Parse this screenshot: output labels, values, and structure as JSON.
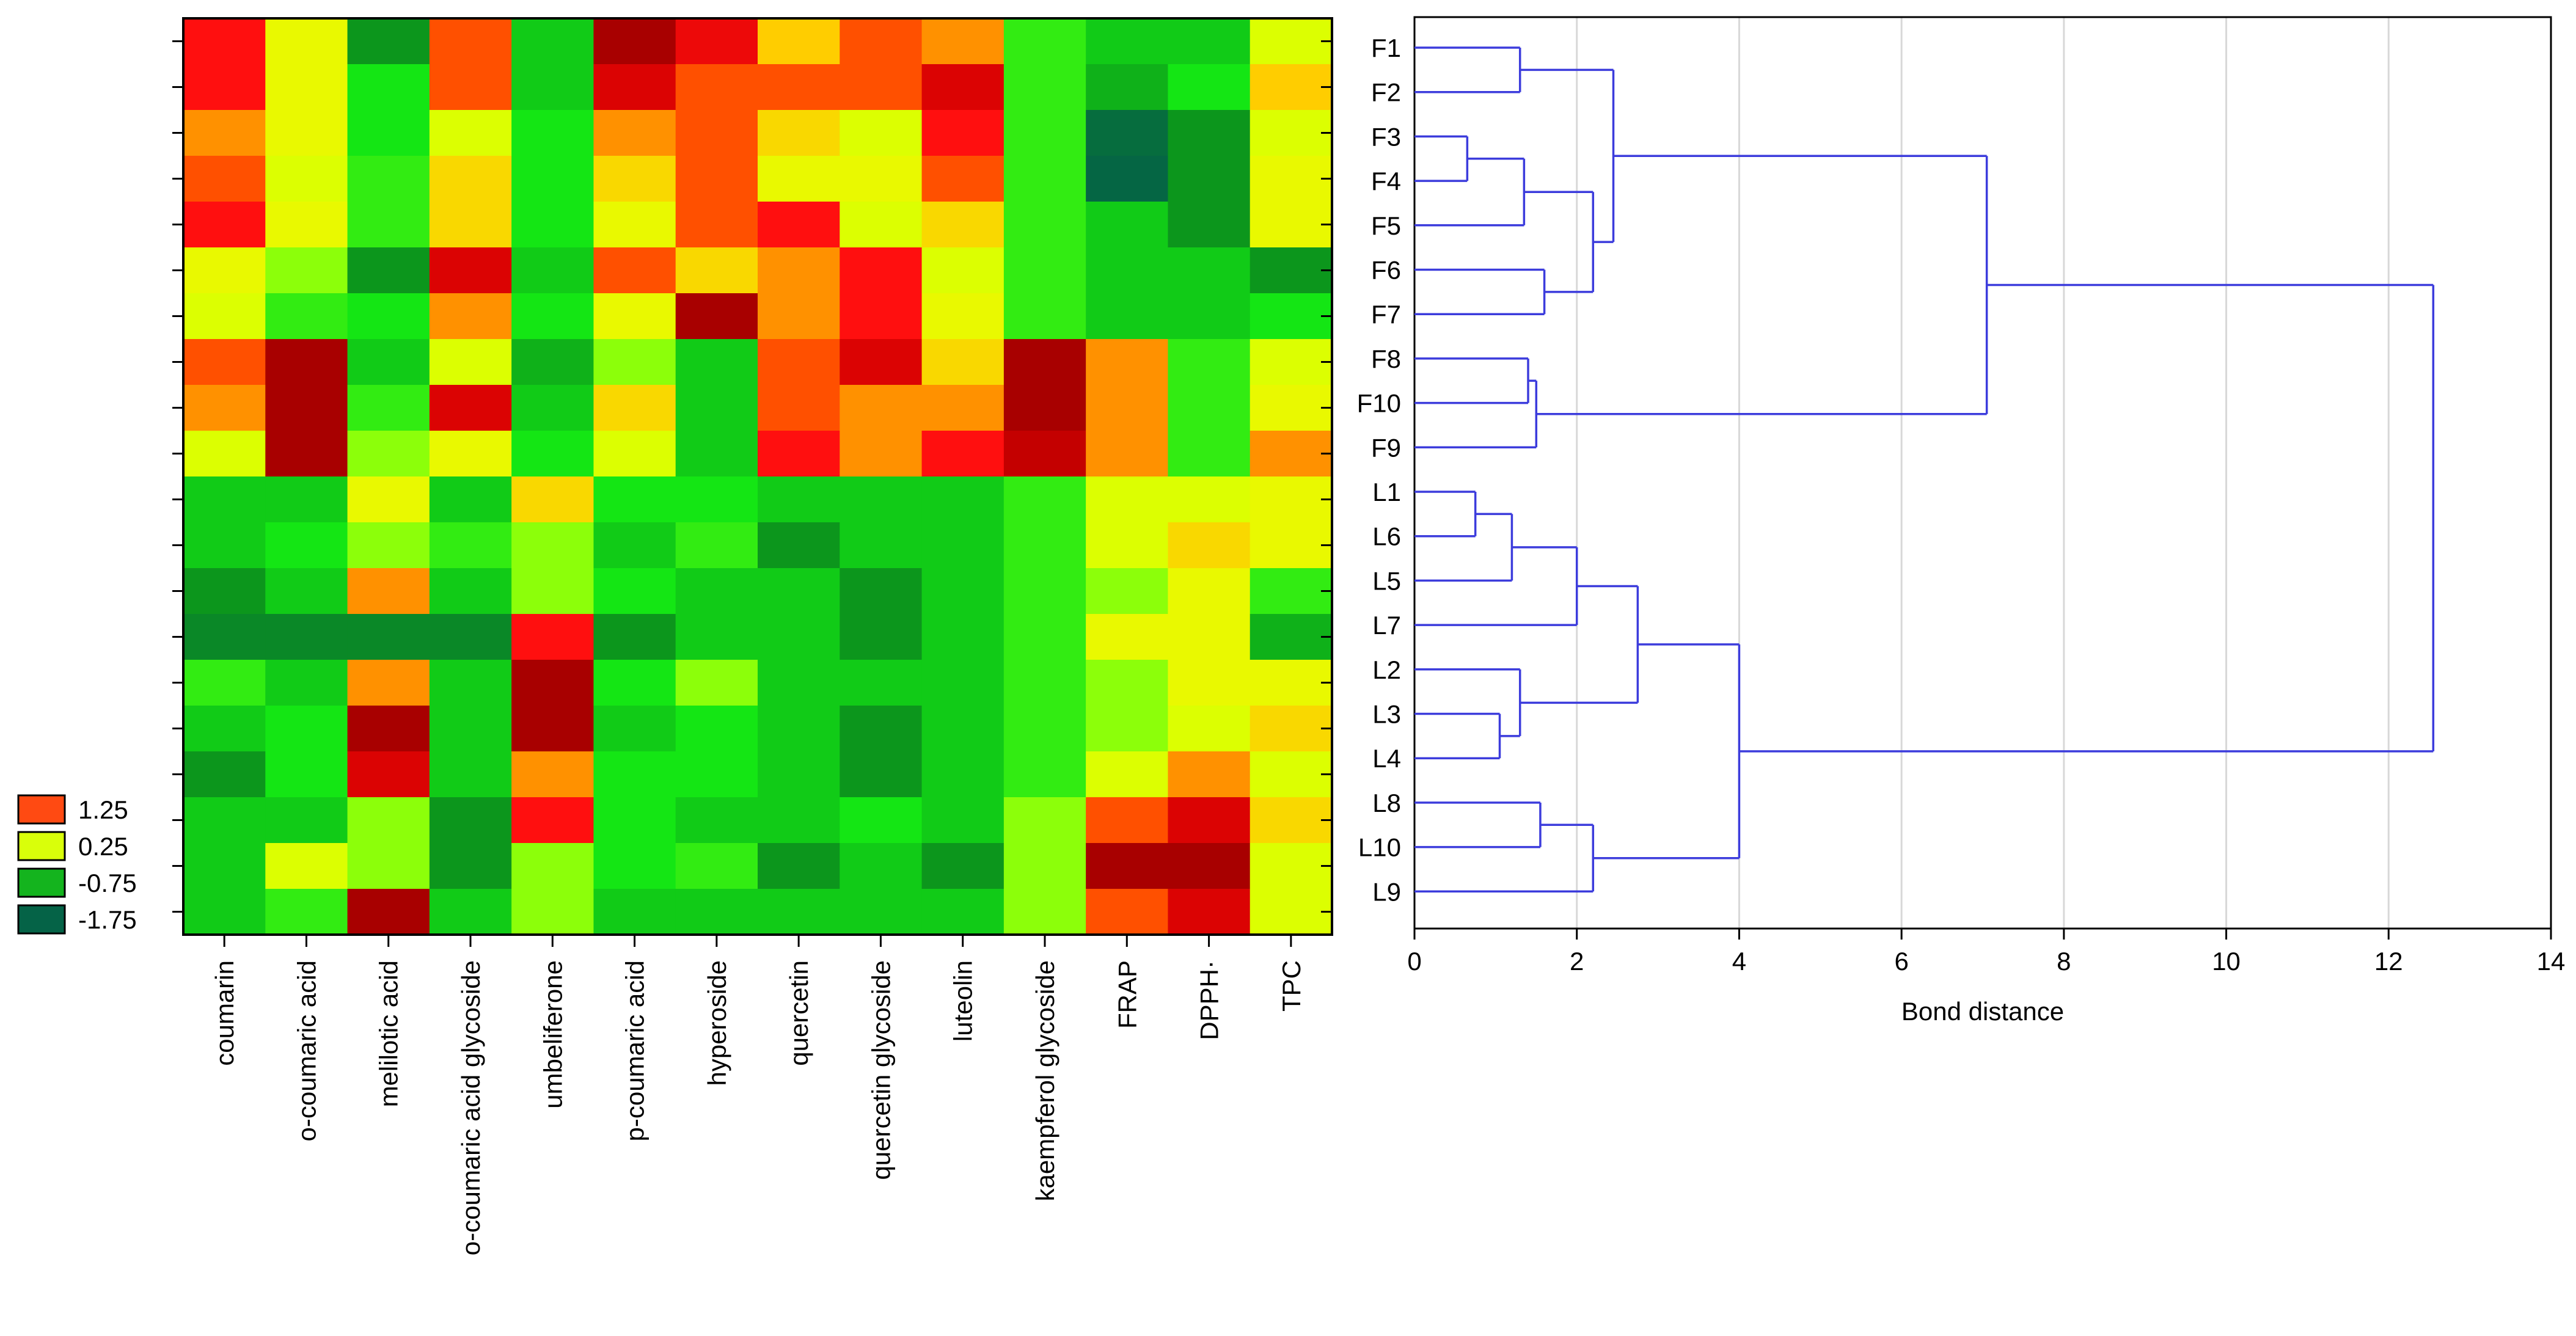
{
  "chart_data": [
    {
      "type": "heatmap",
      "title": "",
      "columns": [
        "coumarin",
        "o-coumaric acid",
        "melilotic acid",
        "o-coumaric acid glycoside",
        "umbeliferone",
        "p-coumaric acid",
        "hyperoside",
        "quercetin",
        "quercetin glycoside",
        "luteolin",
        "kaempferol glycoside",
        "FRAP",
        "DPPH·",
        "TPC"
      ],
      "rows_unlabeled": 20,
      "values": [
        [
          1.6,
          0.3,
          -1.2,
          1.3,
          -0.8,
          2.0,
          1.7,
          0.7,
          1.3,
          1.0,
          -0.5,
          -0.8,
          -0.8,
          0.2
        ],
        [
          1.6,
          0.3,
          -0.6,
          1.3,
          -0.8,
          1.8,
          1.3,
          1.3,
          1.3,
          1.8,
          -0.5,
          -1.0,
          -0.6,
          0.7
        ],
        [
          1.0,
          0.3,
          -0.6,
          0.2,
          -0.6,
          1.0,
          1.3,
          0.6,
          0.2,
          1.6,
          -0.5,
          -1.8,
          -1.2,
          0.2
        ],
        [
          1.3,
          0.2,
          -0.5,
          0.6,
          -0.6,
          0.6,
          1.3,
          0.3,
          0.3,
          1.3,
          -0.5,
          -1.9,
          -1.2,
          0.3
        ],
        [
          1.6,
          0.3,
          -0.5,
          0.6,
          -0.6,
          0.3,
          1.3,
          1.6,
          0.2,
          0.6,
          -0.5,
          -0.8,
          -1.2,
          0.3
        ],
        [
          0.3,
          -0.2,
          -1.2,
          1.8,
          -0.8,
          1.3,
          0.6,
          1.0,
          1.6,
          0.2,
          -0.5,
          -0.8,
          -0.8,
          -1.2
        ],
        [
          0.2,
          -0.5,
          -0.6,
          1.0,
          -0.6,
          0.3,
          2.0,
          1.0,
          1.6,
          0.3,
          -0.5,
          -0.8,
          -0.8,
          -0.6
        ],
        [
          1.3,
          2.0,
          -0.8,
          0.2,
          -1.0,
          -0.2,
          -0.8,
          1.3,
          1.8,
          0.6,
          2.0,
          1.0,
          -0.5,
          0.2
        ],
        [
          1.0,
          2.0,
          -0.5,
          1.8,
          -0.8,
          0.6,
          -0.8,
          1.3,
          1.0,
          1.0,
          2.0,
          1.0,
          -0.5,
          0.3
        ],
        [
          0.2,
          2.0,
          -0.2,
          0.3,
          -0.6,
          0.2,
          -0.8,
          1.6,
          1.0,
          1.6,
          1.9,
          1.0,
          -0.5,
          1.0
        ],
        [
          -0.8,
          -0.8,
          0.3,
          -0.8,
          0.6,
          -0.6,
          -0.6,
          -0.8,
          -0.8,
          -0.8,
          -0.5,
          0.2,
          0.2,
          0.3
        ],
        [
          -0.8,
          -0.6,
          -0.2,
          -0.5,
          -0.2,
          -0.8,
          -0.5,
          -1.2,
          -0.8,
          -0.8,
          -0.5,
          0.2,
          0.6,
          0.3
        ],
        [
          -1.2,
          -0.8,
          1.0,
          -0.8,
          -0.2,
          -0.6,
          -0.8,
          -0.8,
          -1.2,
          -0.8,
          -0.5,
          -0.2,
          0.3,
          -0.5
        ],
        [
          -1.4,
          -1.4,
          -1.4,
          -1.4,
          1.6,
          -1.2,
          -0.8,
          -0.8,
          -1.2,
          -0.8,
          -0.5,
          0.3,
          0.3,
          -1.0
        ],
        [
          -0.5,
          -0.8,
          1.0,
          -0.8,
          2.0,
          -0.6,
          -0.2,
          -0.8,
          -0.8,
          -0.8,
          -0.5,
          -0.2,
          0.3,
          0.3
        ],
        [
          -0.8,
          -0.6,
          2.0,
          -0.8,
          2.0,
          -0.8,
          -0.6,
          -0.8,
          -1.2,
          -0.8,
          -0.5,
          -0.2,
          0.2,
          0.6
        ],
        [
          -1.2,
          -0.6,
          1.8,
          -0.8,
          1.0,
          -0.6,
          -0.6,
          -0.8,
          -1.2,
          -0.8,
          -0.5,
          0.2,
          1.0,
          0.2
        ],
        [
          -0.8,
          -0.8,
          -0.2,
          -1.2,
          1.6,
          -0.6,
          -0.8,
          -0.8,
          -0.6,
          -0.8,
          -0.2,
          1.3,
          1.8,
          0.6
        ],
        [
          -0.8,
          0.2,
          -0.2,
          -1.2,
          -0.2,
          -0.6,
          -0.5,
          -1.2,
          -0.8,
          -1.2,
          -0.2,
          2.0,
          2.0,
          0.2
        ],
        [
          -0.8,
          -0.5,
          2.0,
          -0.8,
          -0.2,
          -0.8,
          -0.8,
          -0.8,
          -0.8,
          -0.8,
          -0.2,
          1.3,
          1.8,
          0.2
        ]
      ],
      "legend": {
        "entries": [
          {
            "label": "1.25",
            "color": "#ff4a12"
          },
          {
            "label": "0.25",
            "color": "#d9ff0a"
          },
          {
            "label": "-0.75",
            "color": "#14b41e"
          },
          {
            "label": "-1.75",
            "color": "#056347"
          }
        ]
      }
    },
    {
      "type": "dendrogram",
      "title": "",
      "xlabel": "Bond distance",
      "xlim": [
        0,
        14
      ],
      "xticks": [
        "0",
        "2",
        "4",
        "6",
        "8",
        "10",
        "12",
        "14"
      ],
      "leaf_order": [
        "F1",
        "F2",
        "F3",
        "F4",
        "F5",
        "F6",
        "F7",
        "F8",
        "F10",
        "F9",
        "L1",
        "L6",
        "L5",
        "L7",
        "L2",
        "L3",
        "L4",
        "L8",
        "L10",
        "L9"
      ],
      "merges": [
        {
          "a": "F3",
          "b": "F4",
          "distance": 0.65
        },
        {
          "a": "L1",
          "b": "L6",
          "distance": 0.75
        },
        {
          "a": "L3",
          "b": "L4",
          "distance": 1.05
        },
        {
          "a": "(L1,L6)",
          "b": "L5",
          "distance": 1.2
        },
        {
          "a": "F1",
          "b": "F2",
          "distance": 1.3
        },
        {
          "a": "L2",
          "b": "(L3,L4)",
          "distance": 1.3
        },
        {
          "a": "(F3,F4)",
          "b": "F5",
          "distance": 1.35
        },
        {
          "a": "F8",
          "b": "F10",
          "distance": 1.4
        },
        {
          "a": "(F8,F10)",
          "b": "F9",
          "distance": 1.5
        },
        {
          "a": "L8",
          "b": "L10",
          "distance": 1.55
        },
        {
          "a": "F6",
          "b": "F7",
          "distance": 1.6
        },
        {
          "a": "((L1,L6),L5)",
          "b": "L7",
          "distance": 2.0
        },
        {
          "a": "((F3,F4),F5)",
          "b": "(F6,F7)",
          "distance": 2.2
        },
        {
          "a": "(L8,L10)",
          "b": "L9",
          "distance": 2.2
        },
        {
          "a": "(F1,F2)",
          "b": "(((F3,F4),F5),(F6,F7))",
          "distance": 2.45
        },
        {
          "a": "(((L1,L6),L5),L7)",
          "b": "(L2,(L3,L4))",
          "distance": 2.75
        },
        {
          "a": "L1-L7 cluster",
          "b": "(L8,L10,L9)",
          "distance": 4.0
        },
        {
          "a": "F1-F7 cluster",
          "b": "(F8,F10,F9)",
          "distance": 7.05
        },
        {
          "a": "F cluster",
          "b": "L cluster",
          "distance": 12.55
        }
      ]
    }
  ],
  "style": {
    "line_color": "#3c3cdc",
    "grid_color": "#d8d8d8",
    "axis_color": "#000000"
  }
}
